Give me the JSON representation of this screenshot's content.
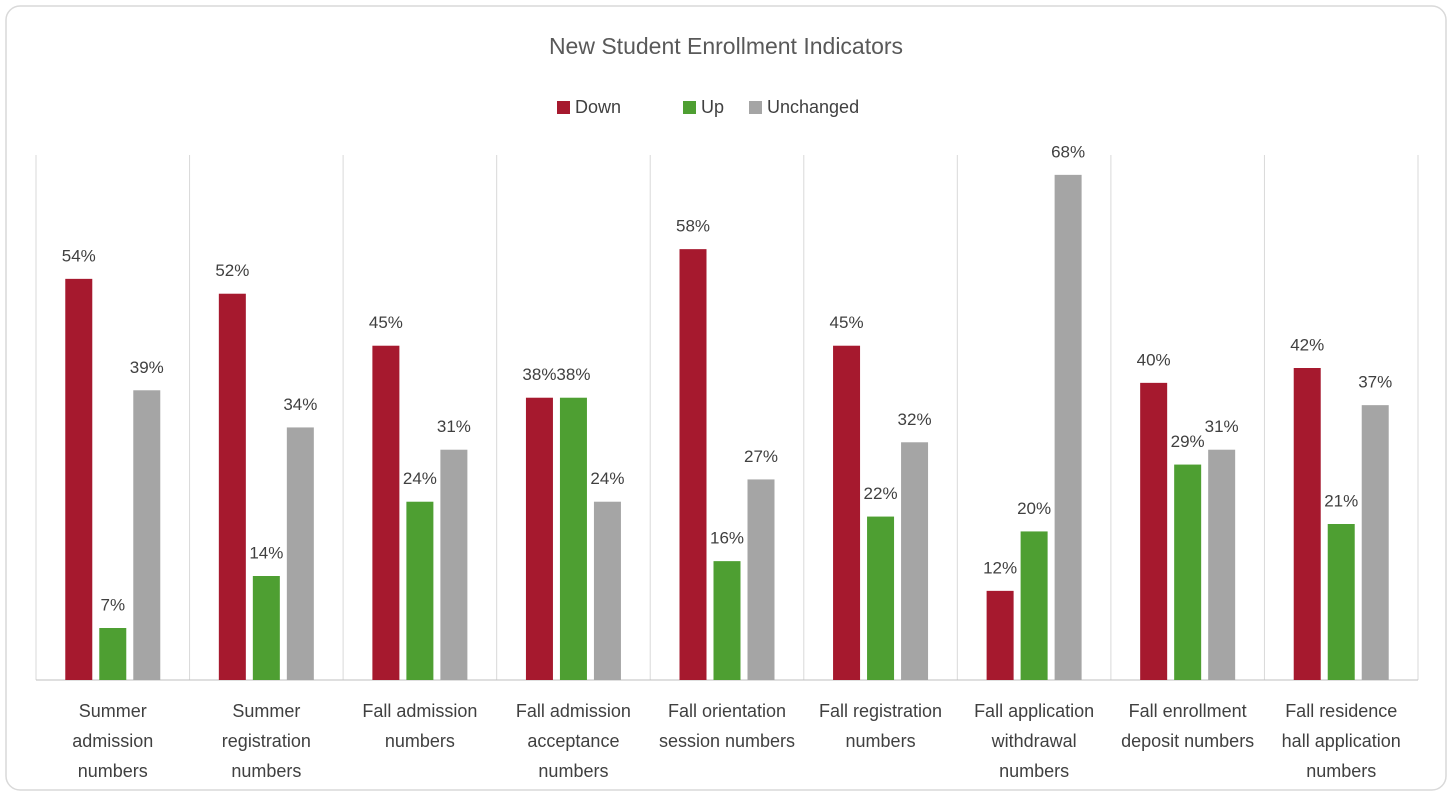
{
  "chart_data": {
    "type": "bar",
    "title": "New Student Enrollment Indicators",
    "categories": [
      "Summer admission numbers",
      "Summer registration numbers",
      "Fall admission numbers",
      "Fall admission acceptance numbers",
      "Fall orientation session numbers",
      "Fall registration numbers",
      "Fall application withdrawal numbers",
      "Fall enrollment deposit numbers",
      "Fall residence hall application numbers"
    ],
    "series": [
      {
        "name": "Down",
        "color": "#a6192e",
        "values": [
          54,
          52,
          45,
          38,
          58,
          45,
          12,
          40,
          42
        ],
        "value_labels": [
          "54%",
          "52%",
          "45%",
          "38%",
          "58%",
          "45%",
          "12%",
          "40%",
          "42%"
        ]
      },
      {
        "name": "Up",
        "color": "#4e9f32",
        "values": [
          7,
          14,
          24,
          38,
          16,
          22,
          20,
          29,
          21
        ],
        "value_labels": [
          "7%",
          "14%",
          "24%",
          "38%",
          "16%",
          "22%",
          "20%",
          "29%",
          "21%"
        ]
      },
      {
        "name": "Unchanged",
        "color": "#a5a5a5",
        "values": [
          39,
          34,
          31,
          24,
          27,
          32,
          68,
          31,
          37
        ],
        "value_labels": [
          "39%",
          "34%",
          "31%",
          "24%",
          "27%",
          "32%",
          "68%",
          "31%",
          "37%"
        ]
      }
    ],
    "ylim": [
      0,
      70
    ],
    "legend": "top"
  }
}
